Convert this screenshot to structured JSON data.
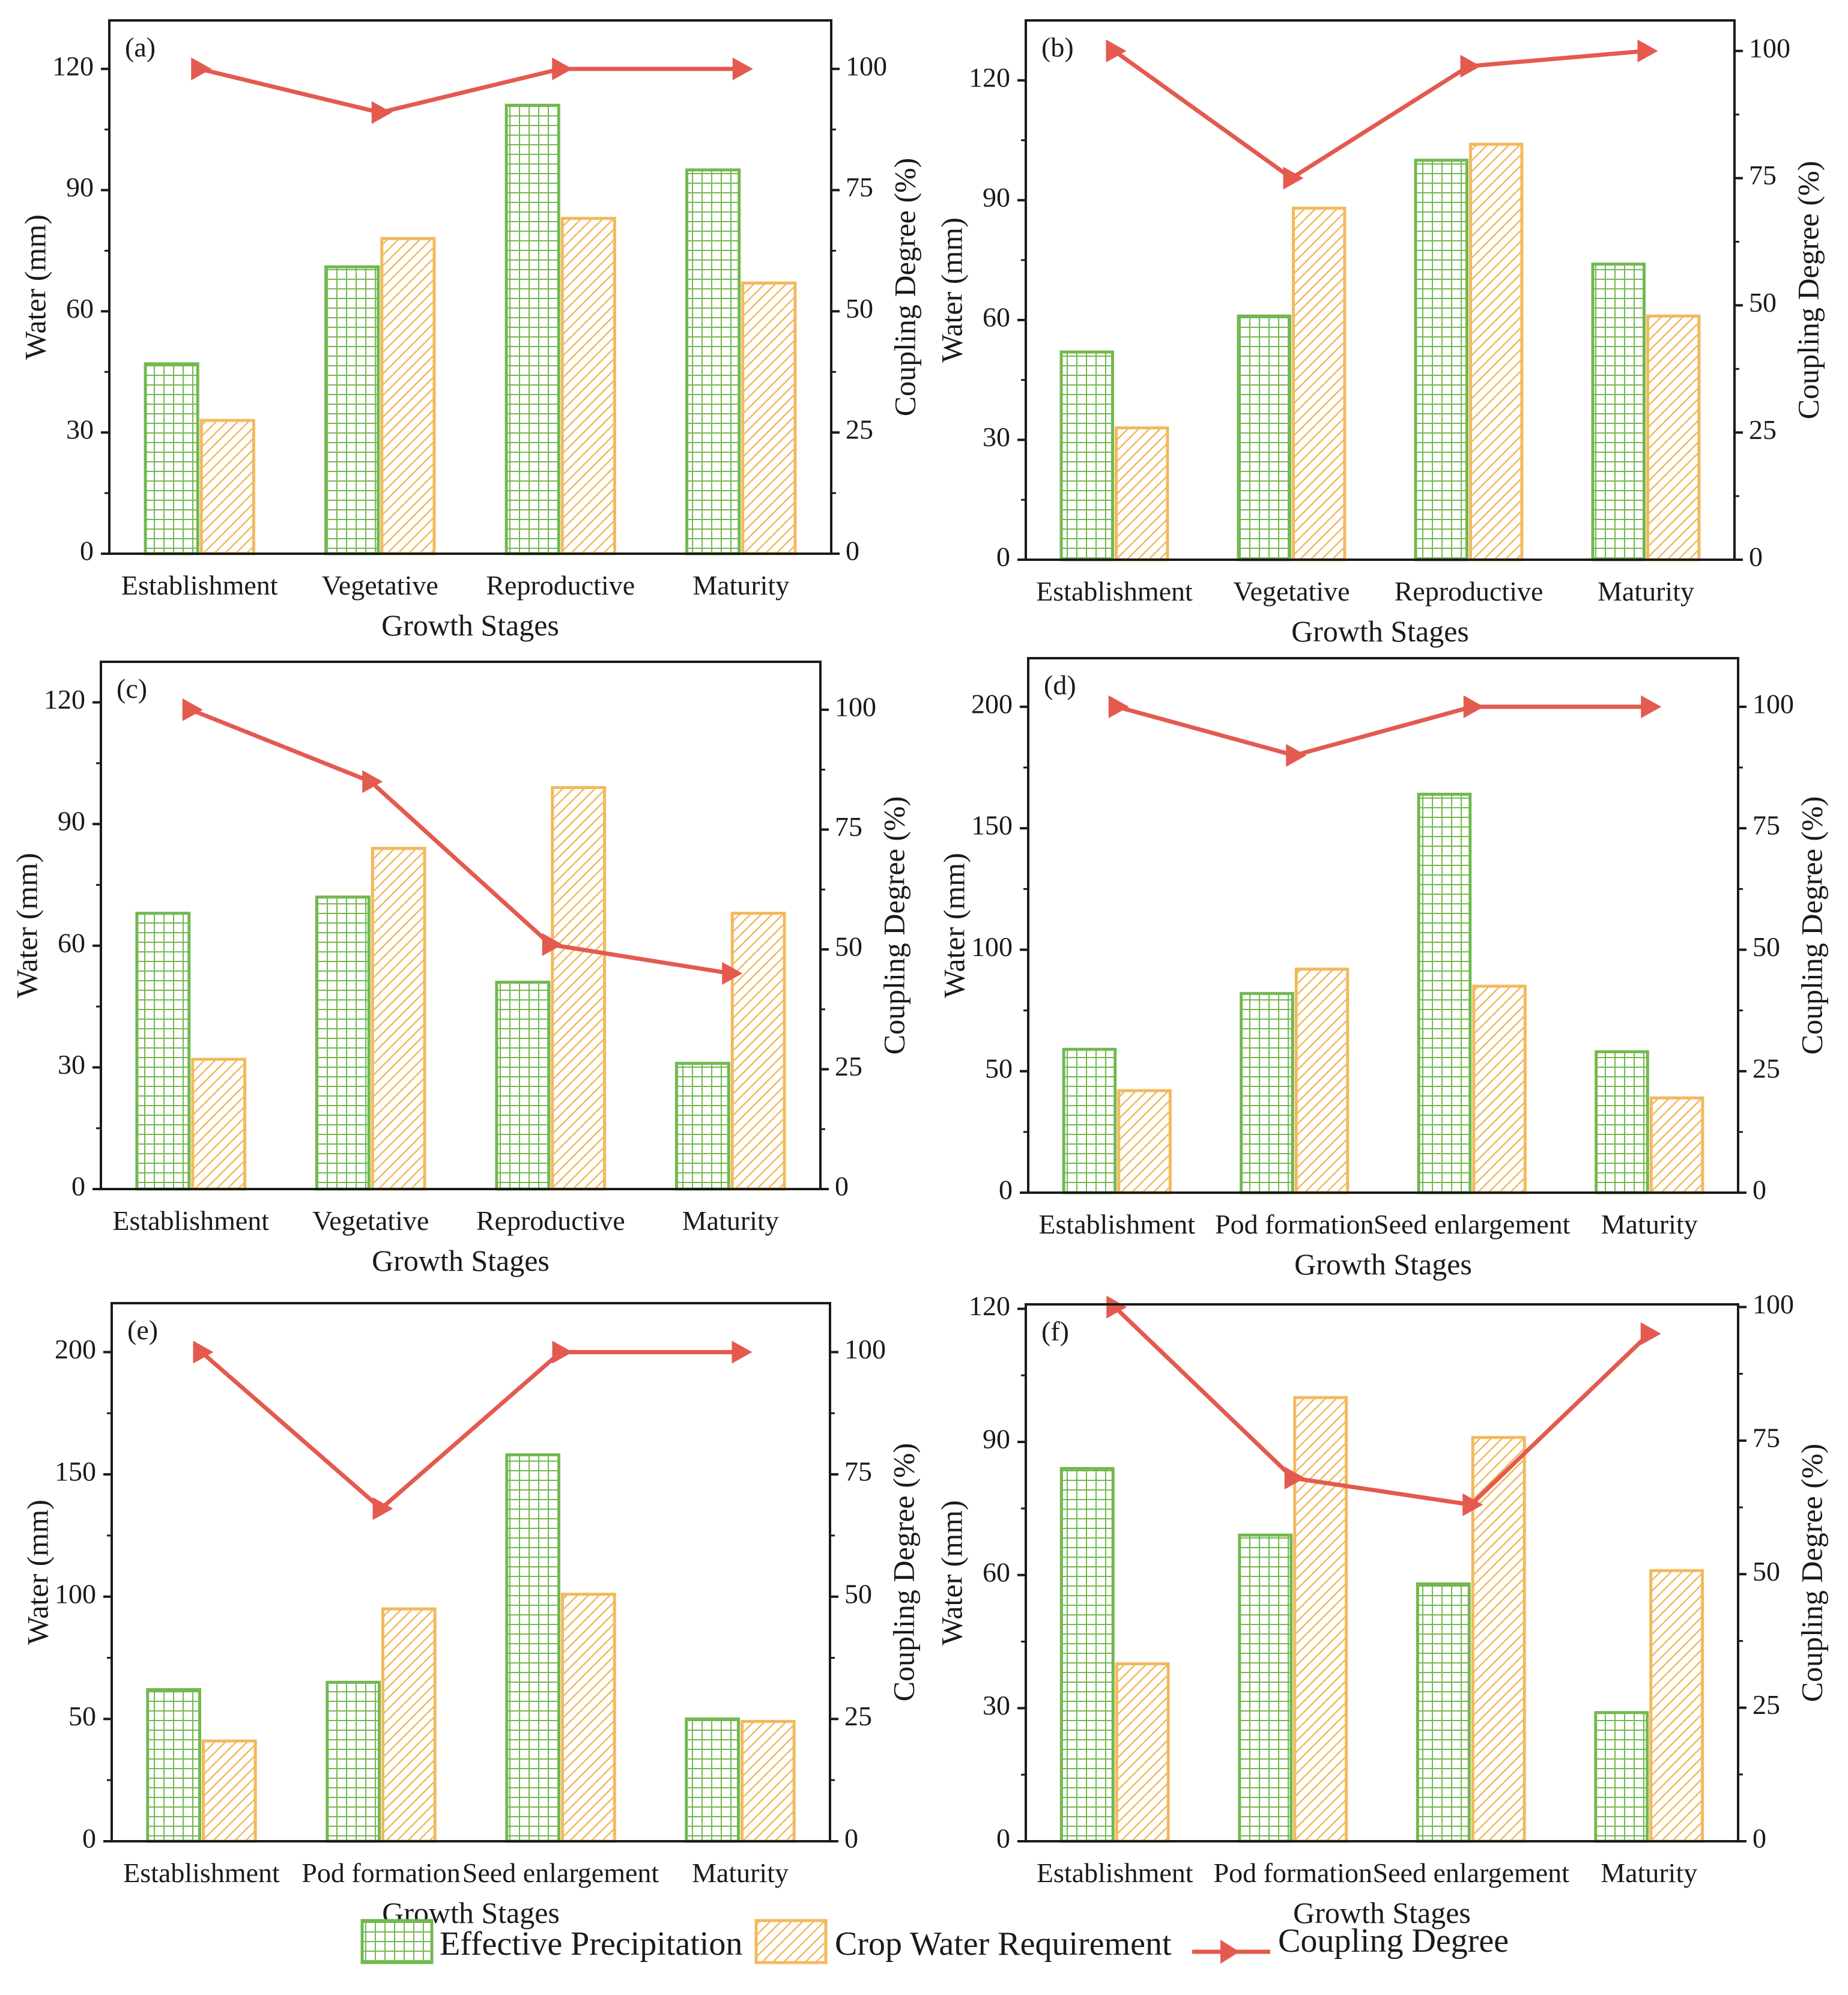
{
  "colors": {
    "effective_precipitation": "#72b84f",
    "crop_water_requirement": "#f2b95c",
    "coupling_degree": "#e45a4f",
    "axis": "#1a1a1a"
  },
  "legend": {
    "effective_precipitation": "Effective Precipitation",
    "crop_water_requirement": "Crop Water Requirement",
    "coupling_degree": "Coupling Degree"
  },
  "chart_data": [
    {
      "type": "bar",
      "panel": "(a)",
      "xlabel": "Growth Stages",
      "ylabel": "Water (mm)",
      "y2label": "Coupling Degree (%)",
      "categories": [
        "Establishment",
        "Vegetative",
        "Reproductive",
        "Maturity"
      ],
      "ylim": [
        0,
        132
      ],
      "yticks": [
        0,
        30,
        60,
        90,
        120
      ],
      "y2lim": [
        0,
        110
      ],
      "y2ticks": [
        0,
        25,
        50,
        75,
        100
      ],
      "series": [
        {
          "name": "Effective Precipitation",
          "values": [
            47,
            71,
            111,
            95
          ]
        },
        {
          "name": "Crop Water Requirement",
          "values": [
            33,
            78,
            83,
            67
          ]
        }
      ],
      "line": {
        "name": "Coupling Degree",
        "values": [
          100,
          91,
          100,
          100
        ]
      }
    },
    {
      "type": "bar",
      "panel": "(b)",
      "xlabel": "Growth Stages",
      "ylabel": "Water (mm)",
      "y2label": "Coupling Degree (%)",
      "categories": [
        "Establishment",
        "Vegetative",
        "Reproductive",
        "Maturity"
      ],
      "ylim": [
        0,
        135
      ],
      "yticks": [
        0,
        30,
        60,
        90,
        120
      ],
      "y2lim": [
        0,
        106
      ],
      "y2ticks": [
        0,
        25,
        50,
        75,
        100
      ],
      "series": [
        {
          "name": "Effective Precipitation",
          "values": [
            52,
            61,
            100,
            74
          ]
        },
        {
          "name": "Crop Water Requirement",
          "values": [
            33,
            88,
            104,
            61
          ]
        }
      ],
      "line": {
        "name": "Coupling Degree",
        "values": [
          100,
          75,
          97,
          100
        ]
      }
    },
    {
      "type": "bar",
      "panel": "(c)",
      "xlabel": "Growth Stages",
      "ylabel": "Water (mm)",
      "y2label": "Coupling Degree (%)",
      "categories": [
        "Establishment",
        "Vegetative",
        "Reproductive",
        "Maturity"
      ],
      "ylim": [
        0,
        130
      ],
      "yticks": [
        0,
        30,
        60,
        90,
        120
      ],
      "y2lim": [
        0,
        110
      ],
      "y2ticks": [
        0,
        25,
        50,
        75,
        100
      ],
      "series": [
        {
          "name": "Effective Precipitation",
          "values": [
            68,
            72,
            51,
            31
          ]
        },
        {
          "name": "Crop Water Requirement",
          "values": [
            32,
            84,
            99,
            68
          ]
        }
      ],
      "line": {
        "name": "Coupling Degree",
        "values": [
          100,
          85,
          51,
          45
        ]
      }
    },
    {
      "type": "bar",
      "panel": "(d)",
      "xlabel": "Growth Stages",
      "ylabel": "Water (mm)",
      "y2label": "Coupling Degree (%)",
      "categories": [
        "Establishment",
        "Pod formation",
        "Seed enlargement",
        "Maturity"
      ],
      "ylim": [
        0,
        220
      ],
      "yticks": [
        0,
        50,
        100,
        150,
        200
      ],
      "y2lim": [
        0,
        110
      ],
      "y2ticks": [
        0,
        25,
        50,
        75,
        100
      ],
      "series": [
        {
          "name": "Effective Precipitation",
          "values": [
            59,
            82,
            164,
            58
          ]
        },
        {
          "name": "Crop Water Requirement",
          "values": [
            42,
            92,
            85,
            39
          ]
        }
      ],
      "line": {
        "name": "Coupling Degree",
        "values": [
          100,
          90,
          100,
          100
        ]
      }
    },
    {
      "type": "bar",
      "panel": "(e)",
      "xlabel": "Growth Stages",
      "ylabel": "Water (mm)",
      "y2label": "Coupling Degree (%)",
      "categories": [
        "Establishment",
        "Pod formation",
        "Seed enlargement",
        "Maturity"
      ],
      "ylim": [
        0,
        220
      ],
      "yticks": [
        0,
        50,
        100,
        150,
        200
      ],
      "y2lim": [
        0,
        110
      ],
      "y2ticks": [
        0,
        25,
        50,
        75,
        100
      ],
      "series": [
        {
          "name": "Effective Precipitation",
          "values": [
            62,
            65,
            158,
            50
          ]
        },
        {
          "name": "Crop Water Requirement",
          "values": [
            41,
            95,
            101,
            49
          ]
        }
      ],
      "line": {
        "name": "Coupling Degree",
        "values": [
          100,
          68,
          100,
          100
        ]
      }
    },
    {
      "type": "bar",
      "panel": "(f)",
      "xlabel": "Growth Stages",
      "ylabel": "Water (mm)",
      "y2label": "Coupling Degree (%)",
      "categories": [
        "Establishment",
        "Pod formation",
        "Seed enlargement",
        "Maturity"
      ],
      "ylim": [
        0,
        121
      ],
      "yticks": [
        0,
        30,
        60,
        90,
        120
      ],
      "y2lim": [
        0,
        100.5
      ],
      "y2ticks": [
        0,
        25,
        50,
        75,
        100
      ],
      "series": [
        {
          "name": "Effective Precipitation",
          "values": [
            84,
            69,
            58,
            29
          ]
        },
        {
          "name": "Crop Water Requirement",
          "values": [
            40,
            100,
            91,
            61
          ]
        }
      ],
      "line": {
        "name": "Coupling Degree",
        "values": [
          100,
          68,
          63,
          95
        ]
      }
    }
  ]
}
